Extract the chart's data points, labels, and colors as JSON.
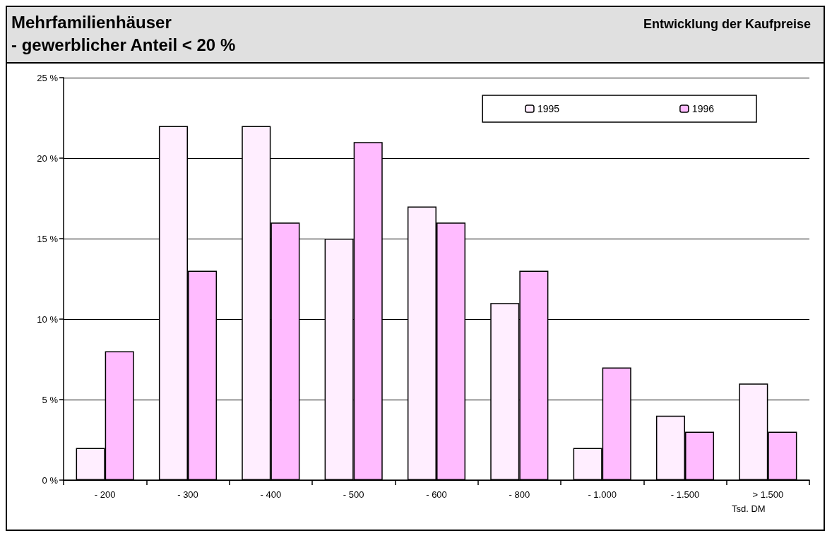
{
  "chart_data": {
    "type": "bar",
    "title": "Mehrfamilienhäuser",
    "subtitle": "- gewerblicher Anteil < 20 %",
    "annotations": [
      "Entwicklung der Kaufpreise"
    ],
    "xlabel": "Tsd. DM",
    "categories": [
      "- 200",
      "- 300",
      "- 400",
      "- 500",
      "- 600",
      "- 800",
      "- 1.000",
      "- 1.500",
      "> 1.500"
    ],
    "series": [
      {
        "name": "1995",
        "color": "#ffeeff",
        "values": [
          2,
          22,
          22,
          15,
          17,
          11,
          2,
          4,
          6
        ]
      },
      {
        "name": "1996",
        "color": "#ffbbff",
        "values": [
          8,
          13,
          16,
          21,
          16,
          13,
          7,
          3,
          3
        ]
      }
    ],
    "ylim": [
      0,
      25
    ],
    "yticks": [
      {
        "value": 0,
        "label": "0 %"
      },
      {
        "value": 5,
        "label": "5 %"
      },
      {
        "value": 10,
        "label": "10 %"
      },
      {
        "value": 15,
        "label": "15 %"
      },
      {
        "value": 20,
        "label": "20 %"
      },
      {
        "value": 25,
        "label": "25 %"
      }
    ],
    "grid": "y",
    "legend": "top right"
  }
}
